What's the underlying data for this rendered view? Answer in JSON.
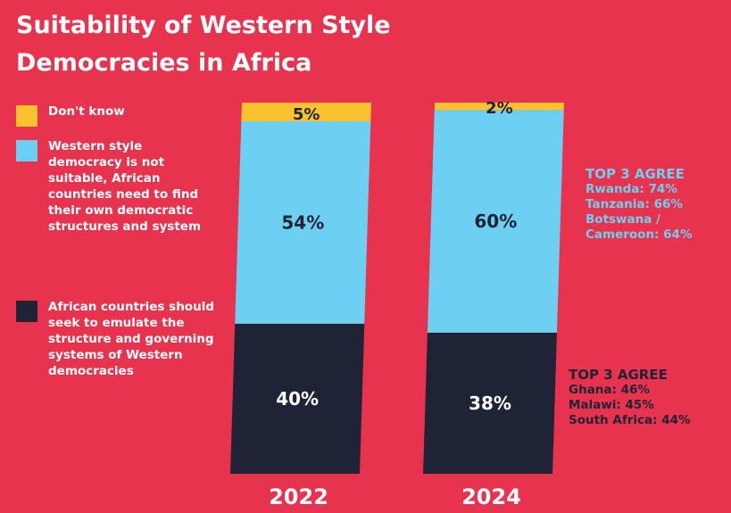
{
  "title_line1": "Suitability of Western Style",
  "title_line2": "Democracies in Africa",
  "legend": [
    {
      "label": "Don't know",
      "color": "#f9c22e"
    },
    {
      "label": "Western style democracy is not suitable, African countries need to find their own democratic structures and system",
      "color": "#6dcff2"
    },
    {
      "label": "African countries should seek to emulate the structure and governing systems of Western democracies",
      "color": "#1e2336"
    }
  ],
  "chart_data": {
    "type": "bar",
    "stacked": true,
    "title": "Suitability of Western Style Democracies in Africa",
    "categories": [
      "2022",
      "2024"
    ],
    "series": [
      {
        "name": "African countries should seek to emulate the structure and governing systems of Western democracies",
        "values": [
          40,
          38
        ],
        "color": "#1e2336",
        "labels": [
          "40%",
          "38%"
        ]
      },
      {
        "name": "Western style democracy is not suitable, African countries need to find their own democratic structures and system",
        "values": [
          54,
          60
        ],
        "color": "#6dcff2",
        "labels": [
          "54%",
          "60%"
        ]
      },
      {
        "name": "Don't know",
        "values": [
          5,
          2
        ],
        "color": "#f9c22e",
        "labels": [
          "5%",
          "2%"
        ]
      }
    ],
    "ylim": [
      0,
      100
    ]
  },
  "annotations": {
    "not_suitable": {
      "heading": "TOP 3 AGREE",
      "lines": [
        "Rwanda: 74%",
        "Tanzania: 66%",
        "Botswana /",
        "Cameroon: 64%"
      ]
    },
    "emulate": {
      "heading": "TOP 3 AGREE",
      "lines": [
        "Ghana: 46%",
        "Malawi: 45%",
        "South Africa: 44%"
      ]
    }
  }
}
